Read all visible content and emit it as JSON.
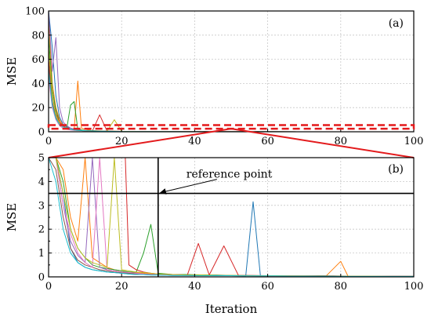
{
  "chart_data": [
    {
      "panel": "(a)",
      "type": "line",
      "ylabel": "MSE",
      "xlim": [
        0,
        100
      ],
      "ylim": [
        0,
        100
      ],
      "xticks": [
        0,
        20,
        40,
        60,
        80,
        100
      ],
      "yticks": [
        0,
        20,
        40,
        60,
        80,
        100
      ],
      "grid": true,
      "series": [
        {
          "color": "#1f77b4",
          "x": [
            0,
            1,
            2,
            3,
            4,
            5,
            6,
            7,
            8,
            9,
            10,
            12,
            14,
            16,
            18,
            20,
            25,
            30,
            40,
            60,
            80,
            100
          ],
          "y": [
            100,
            70,
            30,
            12,
            6,
            4,
            3,
            2,
            2,
            1.5,
            1,
            0.8,
            0.5,
            0.4,
            0.3,
            0.2,
            0.1,
            0.1,
            0.05,
            0.03,
            0.02,
            0.02
          ]
        },
        {
          "color": "#ff7f0e",
          "x": [
            0,
            1,
            2,
            3,
            4,
            5,
            6,
            7,
            8,
            9,
            10,
            12,
            14,
            16,
            18,
            20,
            25,
            30,
            40,
            60,
            80,
            100
          ],
          "y": [
            95,
            40,
            20,
            10,
            5,
            3,
            2,
            1.5,
            42,
            3,
            2,
            1,
            0.7,
            0.5,
            0.4,
            0.3,
            0.2,
            0.1,
            0.05,
            0.04,
            0.03,
            0.02
          ]
        },
        {
          "color": "#2ca02c",
          "x": [
            0,
            1,
            2,
            3,
            4,
            5,
            6,
            7,
            8,
            9,
            10,
            12,
            14,
            16,
            18,
            20,
            25,
            30,
            40,
            60,
            80,
            100
          ],
          "y": [
            80,
            35,
            18,
            8,
            4,
            3,
            22,
            25,
            2,
            1.5,
            1,
            0.8,
            0.6,
            0.5,
            0.4,
            0.3,
            0.2,
            0.1,
            0.08,
            0.05,
            0.03,
            0.02
          ]
        },
        {
          "color": "#d62728",
          "x": [
            0,
            1,
            2,
            3,
            4,
            5,
            6,
            7,
            8,
            9,
            10,
            12,
            14,
            16,
            18,
            20,
            25,
            30,
            40,
            60,
            80,
            100
          ],
          "y": [
            60,
            30,
            15,
            8,
            5,
            3,
            2,
            1.5,
            1.2,
            1,
            0.8,
            0.6,
            14,
            0.5,
            0.4,
            0.3,
            0.2,
            0.15,
            0.1,
            0.05,
            0.03,
            0.02
          ]
        },
        {
          "color": "#9467bd",
          "x": [
            0,
            1,
            2,
            3,
            4,
            5,
            6,
            7,
            8,
            9,
            10,
            12,
            14,
            16,
            18,
            20,
            25,
            30,
            40,
            60,
            80,
            100
          ],
          "y": [
            100,
            50,
            78,
            20,
            8,
            5,
            3,
            2,
            1.5,
            1,
            0.9,
            0.7,
            0.5,
            0.4,
            0.3,
            0.2,
            0.15,
            0.1,
            0.06,
            0.04,
            0.03,
            0.02
          ]
        },
        {
          "color": "#8c564b",
          "x": [
            0,
            1,
            2,
            3,
            4,
            5,
            6,
            7,
            8,
            9,
            10,
            12,
            14,
            16,
            18,
            20,
            25,
            30,
            40,
            60,
            80,
            100
          ],
          "y": [
            55,
            25,
            12,
            6,
            4,
            3,
            2,
            1.5,
            1.2,
            1,
            0.8,
            0.6,
            0.5,
            0.4,
            0.3,
            0.2,
            0.15,
            0.1,
            0.06,
            0.04,
            0.03,
            0.02
          ]
        },
        {
          "color": "#e377c2",
          "x": [
            0,
            1,
            2,
            3,
            4,
            5,
            6,
            7,
            8,
            9,
            10,
            12,
            14,
            16,
            18,
            20,
            25,
            30,
            40,
            60,
            80,
            100
          ],
          "y": [
            45,
            20,
            10,
            5,
            3,
            2,
            1.5,
            1.2,
            1,
            0.9,
            0.8,
            0.6,
            0.5,
            0.4,
            0.3,
            0.2,
            0.15,
            0.1,
            0.06,
            0.04,
            0.03,
            0.02
          ]
        },
        {
          "color": "#bcbd22",
          "x": [
            0,
            1,
            2,
            3,
            4,
            5,
            6,
            7,
            8,
            9,
            10,
            12,
            14,
            16,
            18,
            20,
            25,
            30,
            40,
            60,
            80,
            100
          ],
          "y": [
            70,
            30,
            14,
            7,
            4,
            3,
            2,
            1.5,
            1.2,
            1,
            0.9,
            0.7,
            0.5,
            0.4,
            10,
            0.3,
            0.2,
            0.1,
            0.06,
            0.04,
            0.03,
            0.02
          ]
        },
        {
          "color": "#17becf",
          "x": [
            0,
            1,
            2,
            3,
            4,
            5,
            6,
            7,
            8,
            9,
            10,
            12,
            14,
            16,
            18,
            20,
            25,
            30,
            40,
            60,
            80,
            100
          ],
          "y": [
            50,
            22,
            11,
            6,
            4,
            3,
            2,
            1.5,
            1.2,
            1,
            0.9,
            0.7,
            0.5,
            0.4,
            0.3,
            0.2,
            0.15,
            0.1,
            0.06,
            0.04,
            0.03,
            0.02
          ]
        }
      ],
      "zoom_box": {
        "y0": 2.5,
        "y1": 5.5,
        "color": "#e31a1c",
        "style": "dashed"
      }
    },
    {
      "panel": "(b)",
      "type": "line",
      "xlabel": "Iteration",
      "ylabel": "MSE",
      "xlim": [
        0,
        100
      ],
      "ylim": [
        0,
        5
      ],
      "xticks": [
        0,
        20,
        40,
        60,
        80,
        100
      ],
      "yticks": [
        0,
        0.5,
        1,
        1.5,
        2,
        2.5,
        3,
        3.5,
        4,
        4.5,
        5
      ],
      "ytick_labels": [
        "0",
        "",
        "1",
        "",
        "2",
        "",
        "3",
        "",
        "4",
        "",
        "5"
      ],
      "grid": true,
      "reference_point": {
        "x": 30,
        "y": 3.5,
        "label": "reference point"
      },
      "series": [
        {
          "color": "#1f77b4",
          "x": [
            0,
            2,
            4,
            6,
            8,
            10,
            12,
            14,
            16,
            18,
            20,
            22,
            24,
            26,
            28,
            30,
            34,
            38,
            42,
            46,
            50,
            54,
            56,
            58,
            62,
            66,
            70,
            76,
            82,
            88,
            94,
            100
          ],
          "y": [
            5,
            5,
            3.5,
            1.2,
            0.6,
            0.4,
            0.3,
            0.25,
            0.2,
            0.18,
            0.15,
            0.12,
            0.1,
            0.1,
            0.08,
            0.08,
            0.06,
            0.06,
            0.05,
            0.05,
            0.05,
            0.04,
            3.15,
            0.05,
            0.05,
            0.04,
            0.04,
            0.03,
            0.03,
            0.03,
            0.02,
            0.02
          ]
        },
        {
          "color": "#ff7f0e",
          "x": [
            0,
            2,
            4,
            6,
            8,
            10,
            12,
            14,
            16,
            18,
            20,
            22,
            24,
            26,
            28,
            30,
            34,
            38,
            42,
            46,
            50,
            54,
            58,
            62,
            66,
            70,
            76,
            80,
            82,
            88,
            94,
            100
          ],
          "y": [
            5,
            5,
            4.5,
            2.5,
            1.5,
            5,
            0.8,
            0.6,
            0.4,
            0.3,
            0.25,
            0.2,
            0.18,
            0.15,
            0.12,
            0.1,
            0.1,
            0.08,
            0.08,
            0.06,
            0.06,
            0.05,
            0.05,
            0.05,
            0.05,
            0.04,
            0.04,
            0.65,
            0.03,
            0.03,
            0.03,
            0.02
          ]
        },
        {
          "color": "#2ca02c",
          "x": [
            0,
            2,
            4,
            6,
            8,
            10,
            12,
            14,
            16,
            18,
            20,
            22,
            24,
            26,
            28,
            30,
            34,
            38,
            42,
            46,
            50,
            54,
            58,
            62,
            66,
            70,
            76,
            82,
            88,
            94,
            100
          ],
          "y": [
            5,
            5,
            4,
            2,
            1.2,
            0.8,
            0.5,
            0.4,
            0.35,
            0.3,
            0.25,
            0.2,
            0.2,
            1.0,
            2.2,
            0.15,
            0.1,
            0.1,
            0.08,
            0.08,
            0.06,
            0.06,
            0.05,
            0.05,
            0.05,
            0.04,
            0.04,
            0.03,
            0.03,
            0.02,
            0.02
          ]
        },
        {
          "color": "#d62728",
          "x": [
            0,
            2,
            4,
            6,
            8,
            10,
            12,
            14,
            16,
            18,
            20,
            21,
            22,
            24,
            26,
            28,
            30,
            34,
            38,
            41,
            44,
            48,
            52,
            56,
            60,
            66,
            72,
            78,
            84,
            90,
            96,
            100
          ],
          "y": [
            5,
            5,
            5,
            5,
            5,
            5,
            5,
            5,
            5,
            5,
            5,
            5,
            0.5,
            0.3,
            0.2,
            0.15,
            0.12,
            0.1,
            0.08,
            1.4,
            0.08,
            1.3,
            0.06,
            0.06,
            0.05,
            0.05,
            0.04,
            0.04,
            0.03,
            0.03,
            0.03,
            0.02
          ]
        },
        {
          "color": "#9467bd",
          "x": [
            0,
            2,
            4,
            6,
            8,
            10,
            12,
            14,
            16,
            18,
            20,
            22,
            24,
            26,
            28,
            30,
            34,
            38,
            42,
            46,
            50,
            54,
            58,
            62,
            66,
            70,
            76,
            82,
            88,
            94,
            100
          ],
          "y": [
            5,
            5,
            3,
            1.5,
            0.9,
            0.6,
            5,
            0.4,
            0.3,
            0.25,
            0.2,
            0.18,
            0.15,
            0.12,
            0.1,
            0.1,
            0.08,
            0.08,
            0.06,
            0.06,
            0.05,
            0.05,
            0.05,
            0.04,
            0.04,
            0.04,
            0.03,
            0.03,
            0.03,
            0.02,
            0.02
          ]
        },
        {
          "color": "#8c564b",
          "x": [
            0,
            2,
            4,
            6,
            8,
            10,
            12,
            14,
            16,
            18,
            20,
            22,
            24,
            26,
            28,
            30,
            34,
            38,
            42,
            46,
            50,
            54,
            58,
            62,
            66,
            70,
            76,
            82,
            88,
            94,
            100
          ],
          "y": [
            5,
            4.5,
            2.5,
            1.2,
            0.7,
            0.5,
            0.4,
            0.3,
            0.25,
            0.2,
            0.18,
            0.15,
            0.12,
            0.1,
            0.1,
            0.08,
            0.08,
            0.06,
            0.06,
            0.05,
            0.05,
            0.05,
            0.04,
            0.04,
            0.04,
            0.03,
            0.03,
            0.03,
            0.02,
            0.02,
            0.02
          ]
        },
        {
          "color": "#e377c2",
          "x": [
            0,
            2,
            4,
            6,
            8,
            10,
            12,
            14,
            16,
            18,
            20,
            22,
            24,
            26,
            28,
            30,
            34,
            38,
            42,
            46,
            50,
            54,
            58,
            62,
            66,
            70,
            76,
            82,
            88,
            94,
            100
          ],
          "y": [
            5,
            5,
            3,
            1.8,
            1.0,
            0.6,
            0.4,
            5,
            0.3,
            0.25,
            0.2,
            0.18,
            0.15,
            0.12,
            0.1,
            0.1,
            0.08,
            0.08,
            0.06,
            0.06,
            0.05,
            0.05,
            0.05,
            0.04,
            0.04,
            0.04,
            0.03,
            0.03,
            0.03,
            0.02,
            0.02
          ]
        },
        {
          "color": "#bcbd22",
          "x": [
            0,
            2,
            4,
            6,
            8,
            10,
            12,
            14,
            16,
            18,
            20,
            22,
            24,
            26,
            28,
            30,
            34,
            38,
            42,
            46,
            50,
            54,
            58,
            62,
            66,
            70,
            76,
            82,
            88,
            94,
            100
          ],
          "y": [
            5,
            5,
            3.5,
            2,
            1.2,
            0.8,
            0.6,
            0.5,
            0.4,
            5,
            0.3,
            0.25,
            0.2,
            0.18,
            0.15,
            0.12,
            0.1,
            0.08,
            0.08,
            0.06,
            0.06,
            0.05,
            0.05,
            0.05,
            0.04,
            0.04,
            0.03,
            0.03,
            0.03,
            0.02,
            0.02
          ]
        },
        {
          "color": "#17becf",
          "x": [
            0,
            2,
            4,
            6,
            8,
            10,
            12,
            14,
            16,
            18,
            20,
            22,
            24,
            26,
            28,
            30,
            34,
            38,
            42,
            46,
            50,
            54,
            58,
            62,
            66,
            70,
            76,
            82,
            88,
            94,
            100
          ],
          "y": [
            5,
            4,
            2,
            1.0,
            0.6,
            0.4,
            0.3,
            0.25,
            0.2,
            0.18,
            0.15,
            0.12,
            0.1,
            0.1,
            0.08,
            0.08,
            0.06,
            0.06,
            0.05,
            0.05,
            0.05,
            0.04,
            0.04,
            0.04,
            0.03,
            0.03,
            0.03,
            0.02,
            0.02,
            0.02,
            0.02
          ]
        }
      ]
    }
  ]
}
